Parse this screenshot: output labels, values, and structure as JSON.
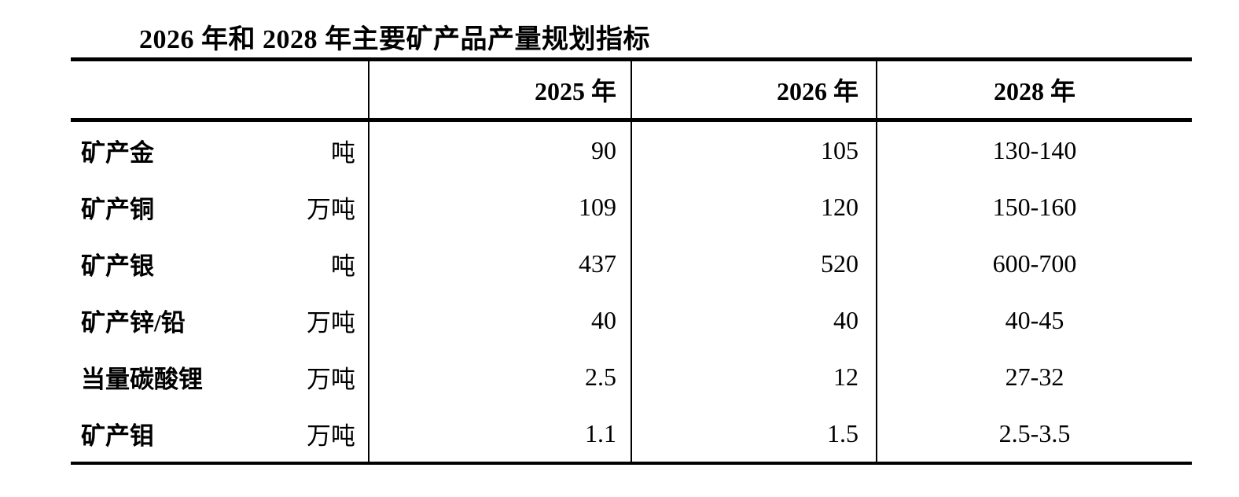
{
  "title": "2026 年和 2028 年主要矿产品产量规划指标",
  "table": {
    "columns": [
      "",
      "2025 年",
      "2026 年",
      "2028 年"
    ],
    "rows": [
      {
        "name": "矿产金",
        "unit": "吨",
        "y2025": "90",
        "y2026": "105",
        "y2028": "130-140"
      },
      {
        "name": "矿产铜",
        "unit": "万吨",
        "y2025": "109",
        "y2026": "120",
        "y2028": "150-160"
      },
      {
        "name": "矿产银",
        "unit": "吨",
        "y2025": "437",
        "y2026": "520",
        "y2028": "600-700"
      },
      {
        "name": "矿产锌/铅",
        "unit": "万吨",
        "y2025": "40",
        "y2026": "40",
        "y2028": "40-45"
      },
      {
        "name": "当量碳酸锂",
        "unit": "万吨",
        "y2025": "2.5",
        "y2026": "12",
        "y2028": "27-32"
      },
      {
        "name": "矿产钼",
        "unit": "万吨",
        "y2025": "1.1",
        "y2026": "1.5",
        "y2028": "2.5-3.5"
      }
    ]
  }
}
